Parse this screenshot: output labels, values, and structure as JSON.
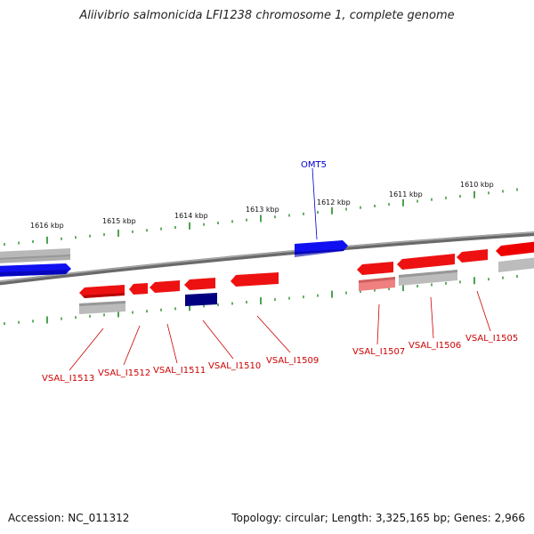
{
  "title": "Aliivibrio salmonicida LFI1238 chromosome 1, complete genome",
  "ticks": [
    "1616 kbp",
    "1615 kbp",
    "1614 kbp",
    "1613 kbp",
    "1612 kbp",
    "1611 kbp",
    "1610 kbp"
  ],
  "genes": {
    "top": [
      "OMT5"
    ],
    "bottom": [
      "VSAL_I1513",
      "VSAL_I1512",
      "VSAL_I1511",
      "VSAL_I1510",
      "VSAL_I1509",
      "VSAL_I1507",
      "VSAL_I1506",
      "VSAL_I1505"
    ]
  },
  "colors": {
    "forward_cds": "#0000ee",
    "reverse_cds": "#ee0000",
    "dark_cds": "#000080",
    "pale_cds": "#f08080",
    "rna": "#b4b4b4",
    "tick": "#228b22",
    "label_top": "#0000cc",
    "label_bottom": "#cc0000"
  },
  "footer": {
    "accession": "Accession: NC_011312",
    "summary": "Topology: circular; Length: 3,325,165 bp; Genes: 2,966"
  }
}
